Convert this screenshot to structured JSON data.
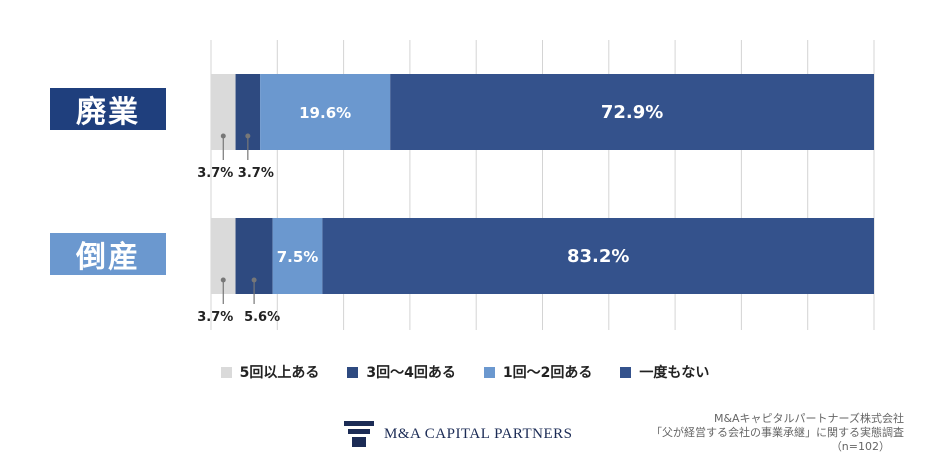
{
  "chart_data": {
    "type": "bar",
    "orientation": "horizontal",
    "stacked": true,
    "categories": [
      "廃業",
      "倒産"
    ],
    "series": [
      {
        "name": "5回以上ある",
        "values": [
          3.7,
          3.7
        ],
        "labels": [
          "3.7%",
          "3.7%"
        ],
        "color": "#dadada"
      },
      {
        "name": "3回〜4回ある",
        "values": [
          3.7,
          5.6
        ],
        "labels": [
          "3.7%",
          "5.6%"
        ],
        "color": "#2e4a80"
      },
      {
        "name": "1回〜2回ある",
        "values": [
          19.6,
          7.5
        ],
        "labels": [
          "19.6%",
          "7.5%"
        ],
        "color": "#6b98cf"
      },
      {
        "name": "一度もない",
        "values": [
          72.9,
          83.2
        ],
        "labels": [
          "72.9%",
          "83.2%"
        ],
        "color": "#34528c"
      }
    ],
    "xlim": [
      0,
      100
    ],
    "grid": true,
    "legend_position": "bottom"
  },
  "category_colors": [
    "#1f3f7d",
    "#6b98cf"
  ],
  "source": {
    "line1": "M&Aキャピタルパートナーズ株式会社",
    "line2": "「父が経営する会社の事業承継」に関する実態調査",
    "line3": "（n=102）"
  },
  "logo": {
    "prefix": "M&A C",
    "big1": "",
    "text": "M&A CAPITAL PARTNERS"
  }
}
